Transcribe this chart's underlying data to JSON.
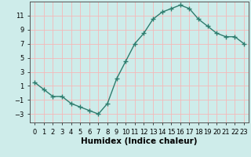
{
  "x": [
    0,
    1,
    2,
    3,
    4,
    5,
    6,
    7,
    8,
    9,
    10,
    11,
    12,
    13,
    14,
    15,
    16,
    17,
    18,
    19,
    20,
    21,
    22,
    23
  ],
  "y": [
    1.5,
    0.5,
    -0.5,
    -0.5,
    -1.5,
    -2.0,
    -2.5,
    -3.0,
    -1.5,
    2.0,
    4.5,
    7.0,
    8.5,
    10.5,
    11.5,
    12.0,
    12.5,
    12.0,
    10.5,
    9.5,
    8.5,
    8.0,
    8.0,
    7.0
  ],
  "line_color": "#2e7d6e",
  "marker": "+",
  "marker_size": 4,
  "marker_color": "#2e7d6e",
  "bg_color": "#ceecea",
  "grid_color": "#f5b8b8",
  "xlabel": "Humidex (Indice chaleur)",
  "xlabel_fontsize": 7.5,
  "xlim": [
    -0.5,
    23.5
  ],
  "ylim": [
    -4.2,
    13
  ],
  "yticks": [
    -3,
    -1,
    1,
    3,
    5,
    7,
    9,
    11
  ],
  "xtick_labels": [
    "0",
    "1",
    "2",
    "3",
    "4",
    "5",
    "6",
    "7",
    "8",
    "9",
    "10",
    "11",
    "12",
    "13",
    "14",
    "15",
    "16",
    "17",
    "18",
    "19",
    "20",
    "21",
    "22",
    "23"
  ],
  "tick_fontsize": 6,
  "line_width": 1.0
}
